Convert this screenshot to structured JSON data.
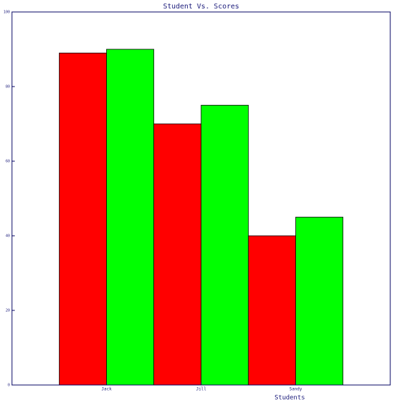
{
  "chart_data": {
    "type": "bar",
    "title": "Student Vs. Scores",
    "x_label": "Students",
    "categories": [
      "Jack",
      "Jill",
      "Sandy"
    ],
    "series": [
      {
        "color": "#ff0000",
        "values": [
          89,
          70,
          40
        ]
      },
      {
        "color": "#00ff00",
        "values": [
          90,
          75,
          45
        ]
      }
    ],
    "ylim": [
      0,
      100
    ],
    "yticks": [
      0,
      20,
      40,
      60,
      80,
      100
    ]
  }
}
